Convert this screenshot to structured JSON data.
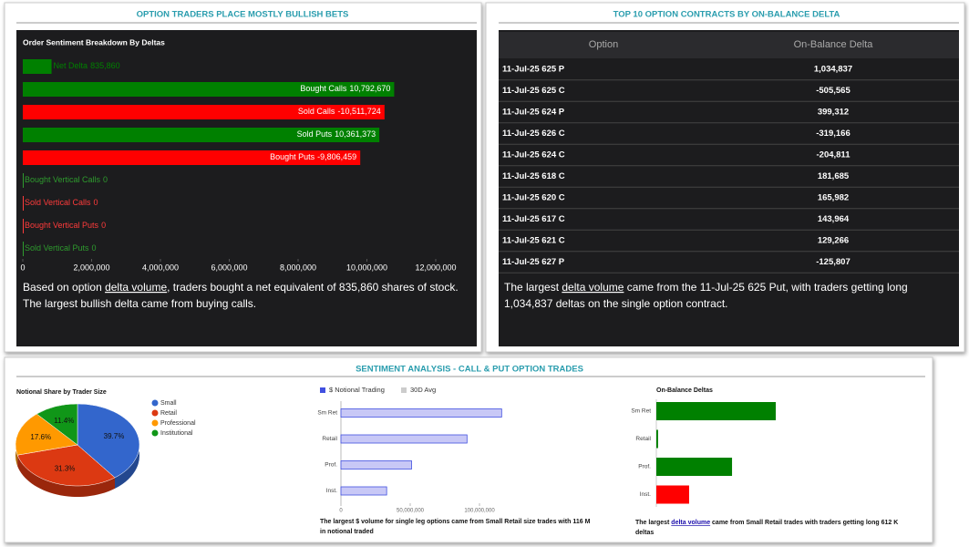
{
  "panels": {
    "left_title": "OPTION TRADERS PLACE MOSTLY BULLISH BETS",
    "bottom_title": "SENTIMENT ANALYSIS - CALL & PUT OPTION TRADES",
    "left_caption": [
      "Based on option ",
      "delta volume",
      ", traders bought a net equivalent of 835,860 shares of stock.",
      "The largest bullish delta came from buying calls."
    ]
  },
  "table": {
    "title": "TOP 10 OPTION CONTRACTS BY ON-BALANCE DELTA",
    "columns": [
      "Option",
      "On-Balance Delta"
    ],
    "rows": [
      [
        "11-Jul-25 625 P",
        "1,034,837"
      ],
      [
        "11-Jul-25 625 C",
        "-505,565"
      ],
      [
        "11-Jul-25 624 P",
        "399,312"
      ],
      [
        "11-Jul-25 626 C",
        "-319,166"
      ],
      [
        "11-Jul-25 624 C",
        "-204,811"
      ],
      [
        "11-Jul-25 618 C",
        "181,685"
      ],
      [
        "11-Jul-25 620 C",
        "165,982"
      ],
      [
        "11-Jul-25 617 C",
        "143,964"
      ],
      [
        "11-Jul-25 621 C",
        "129,266"
      ],
      [
        "11-Jul-25 627 P",
        "-125,807"
      ]
    ],
    "caption": [
      "The largest ",
      "delta volume",
      " came from the 11-Jul-25 625 Put, with traders getting long",
      "1,034,837 deltas on the single option contract."
    ]
  },
  "chart_data": [
    {
      "type": "bar",
      "orientation": "horizontal",
      "title": "Order Sentiment Breakdown By Deltas",
      "categories": [
        "Net Delta",
        "Bought Calls",
        "Sold Calls",
        "Sold Puts",
        "Bought Puts",
        "Bought Vertical Calls",
        "Sold Vertical Calls",
        "Bought Vertical Puts",
        "Sold Vertical Puts"
      ],
      "values": [
        835860,
        10792670,
        -10511724,
        10361373,
        -9806459,
        0,
        0,
        0,
        0
      ],
      "value_labels": [
        "835,860",
        "10,792,670",
        "-10,511,724",
        "10,361,373",
        "-9,806,459",
        "0",
        "0",
        "0",
        "0"
      ],
      "colors": [
        "#008000",
        "#008000",
        "#ff0000",
        "#008000",
        "#ff0000",
        "#2e9b2e",
        "#ff3b3b",
        "#ff3b3b",
        "#2e9b2e"
      ],
      "xlim": [
        0,
        12000000
      ],
      "xticks": [
        0,
        {
          "value": 2000000,
          "label": "2,000,000"
        },
        {
          "value": 4000000,
          "label": "4,000,000"
        },
        {
          "value": 6000000,
          "label": "6,000,000"
        },
        {
          "value": 8000000,
          "label": "8,000,000"
        },
        {
          "value": 10000000,
          "label": "10,000,000"
        },
        {
          "value": 12000000,
          "label": "12,000,000"
        }
      ]
    },
    {
      "type": "pie",
      "title": "Notional Share by Trader Size",
      "categories": [
        "Small",
        "Retail",
        "Professional",
        "Institutional"
      ],
      "values": [
        39.7,
        31.3,
        17.6,
        11.4
      ],
      "value_labels": [
        "39.7%",
        "31.3%",
        "17.6%",
        "11.4%"
      ],
      "colors": [
        "#3366cc",
        "#dc3912",
        "#ff9900",
        "#109618"
      ]
    },
    {
      "type": "bar",
      "orientation": "horizontal",
      "categories": [
        "Sm Ret",
        "Retail",
        "Prof.",
        "Inst."
      ],
      "series": [
        {
          "name": "$ Notional Trading",
          "color": "#4150e0",
          "values": [
            116000000,
            91000000,
            51000000,
            33000000
          ]
        },
        {
          "name": "30D Avg",
          "color": "#cccccc",
          "values": [
            null,
            null,
            null,
            null
          ]
        }
      ],
      "xlim": [
        0,
        150000000
      ],
      "xticks": [
        0,
        {
          "value": 50000000,
          "label": "50,000,000"
        },
        {
          "value": 100000000,
          "label": "100,000,000"
        }
      ],
      "caption": [
        "The largest $ volume for single leg options came from Small Retail size trades with 116 M",
        "in notional traded"
      ]
    },
    {
      "type": "bar",
      "orientation": "horizontal",
      "title": "On-Balance Deltas",
      "categories": [
        "Sm Ret",
        "Retail",
        "Prof.",
        "Inst."
      ],
      "values": [
        612000,
        9000,
        388000,
        -168000
      ],
      "colors": [
        "#008000",
        "#008000",
        "#008000",
        "#ff0000"
      ],
      "caption": [
        "The largest ",
        "delta volume",
        " came from Small Retail trades with traders getting long 612 K",
        "deltas"
      ]
    }
  ]
}
